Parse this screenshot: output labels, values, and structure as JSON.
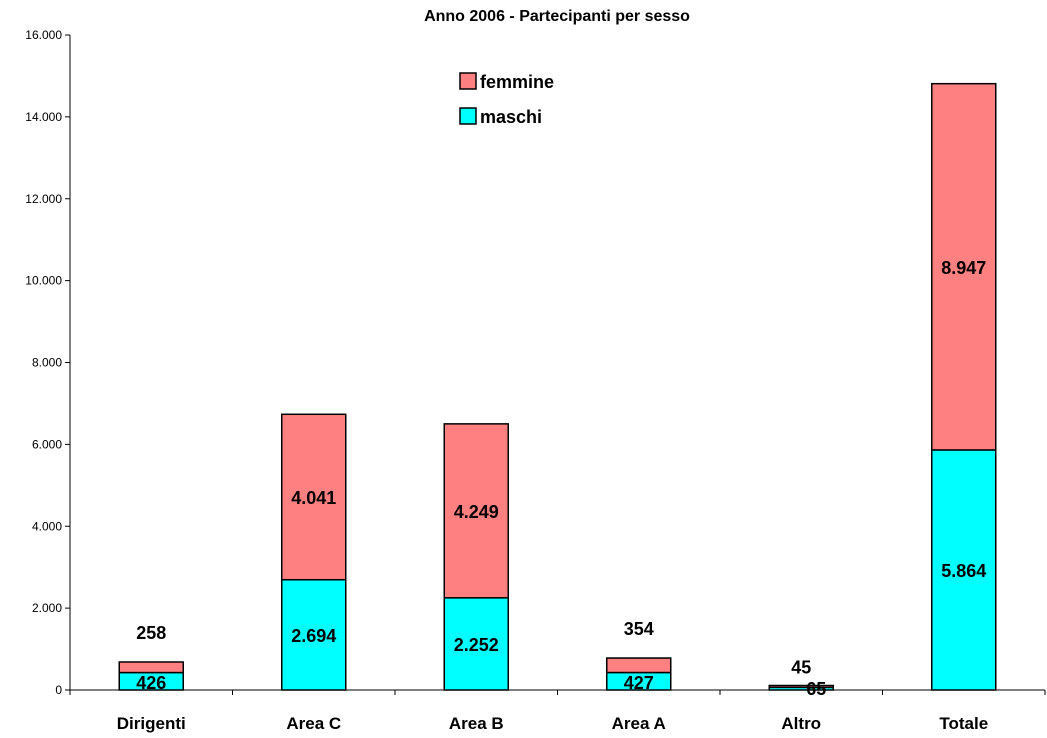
{
  "chart_data": {
    "type": "bar",
    "stacked": true,
    "title": "Anno 2006 - Partecipanti per sesso",
    "categories": [
      "Dirigenti",
      "Area C",
      "Area B",
      "Area A",
      "Altro",
      "Totale"
    ],
    "series": [
      {
        "name": "maschi",
        "values": [
          426,
          2694,
          2252,
          427,
          65,
          5864
        ],
        "labels": [
          "426",
          "2.694",
          "2.252",
          "427",
          "65",
          "5.864"
        ],
        "color": "#00FFFF"
      },
      {
        "name": "femmine",
        "values": [
          258,
          4041,
          4249,
          354,
          45,
          8947
        ],
        "labels": [
          "258",
          "4.041",
          "4.249",
          "354",
          "45",
          "8.947"
        ],
        "color": "#FF8080"
      }
    ],
    "ylim": [
      0,
      16000
    ],
    "yticks": [
      0,
      2000,
      4000,
      6000,
      8000,
      10000,
      12000,
      14000,
      16000
    ],
    "ytick_labels": [
      "0",
      "2.000",
      "4.000",
      "6.000",
      "8.000",
      "10.000",
      "12.000",
      "14.000",
      "16.000"
    ],
    "xlabel": "",
    "ylabel": "",
    "grid": false,
    "legend": {
      "position": "top-center",
      "order": [
        "femmine",
        "maschi"
      ]
    }
  }
}
